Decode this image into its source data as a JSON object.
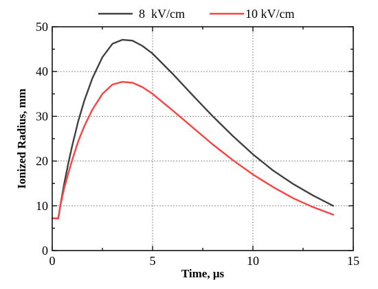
{
  "chart_data": {
    "type": "line",
    "xlabel": "Time, μs",
    "ylabel": "Ionized Radius, mm",
    "xlim": [
      0,
      15
    ],
    "ylim": [
      0,
      50
    ],
    "xticks": [
      "0",
      "5",
      "10",
      "15"
    ],
    "yticks": [
      "0",
      "10",
      "20",
      "30",
      "40",
      "50"
    ],
    "grid": true,
    "legend_position": "top",
    "series": [
      {
        "name": "8  kV/cm",
        "color": "#404040",
        "x": [
          0,
          0.3,
          0.4,
          0.6,
          0.8,
          1,
          1.3,
          1.6,
          2,
          2.5,
          3,
          3.5,
          4,
          4.5,
          5,
          6,
          7,
          8,
          9,
          10,
          11,
          12,
          13,
          14
        ],
        "y": [
          7.2,
          7.2,
          10,
          15,
          19.5,
          23.5,
          29,
          33.5,
          38.5,
          43.2,
          46.2,
          47.1,
          46.9,
          45.7,
          44,
          39.5,
          34.7,
          30,
          25.6,
          21.5,
          17.9,
          14.9,
          12.3,
          10
        ]
      },
      {
        "name": "10 kV/cm",
        "color": "#ff4040",
        "x": [
          0,
          0.3,
          0.4,
          0.6,
          0.8,
          1,
          1.3,
          1.6,
          2,
          2.5,
          3,
          3.5,
          4,
          4.5,
          5,
          6,
          7,
          8,
          9,
          10,
          11,
          12,
          13,
          14
        ],
        "y": [
          7.2,
          7.2,
          10,
          14,
          17.3,
          20.3,
          24.5,
          27.8,
          31.5,
          35,
          37.1,
          37.7,
          37.5,
          36.5,
          35,
          31.3,
          27.5,
          23.7,
          20.2,
          17,
          14.2,
          11.7,
          9.7,
          8
        ]
      }
    ]
  }
}
